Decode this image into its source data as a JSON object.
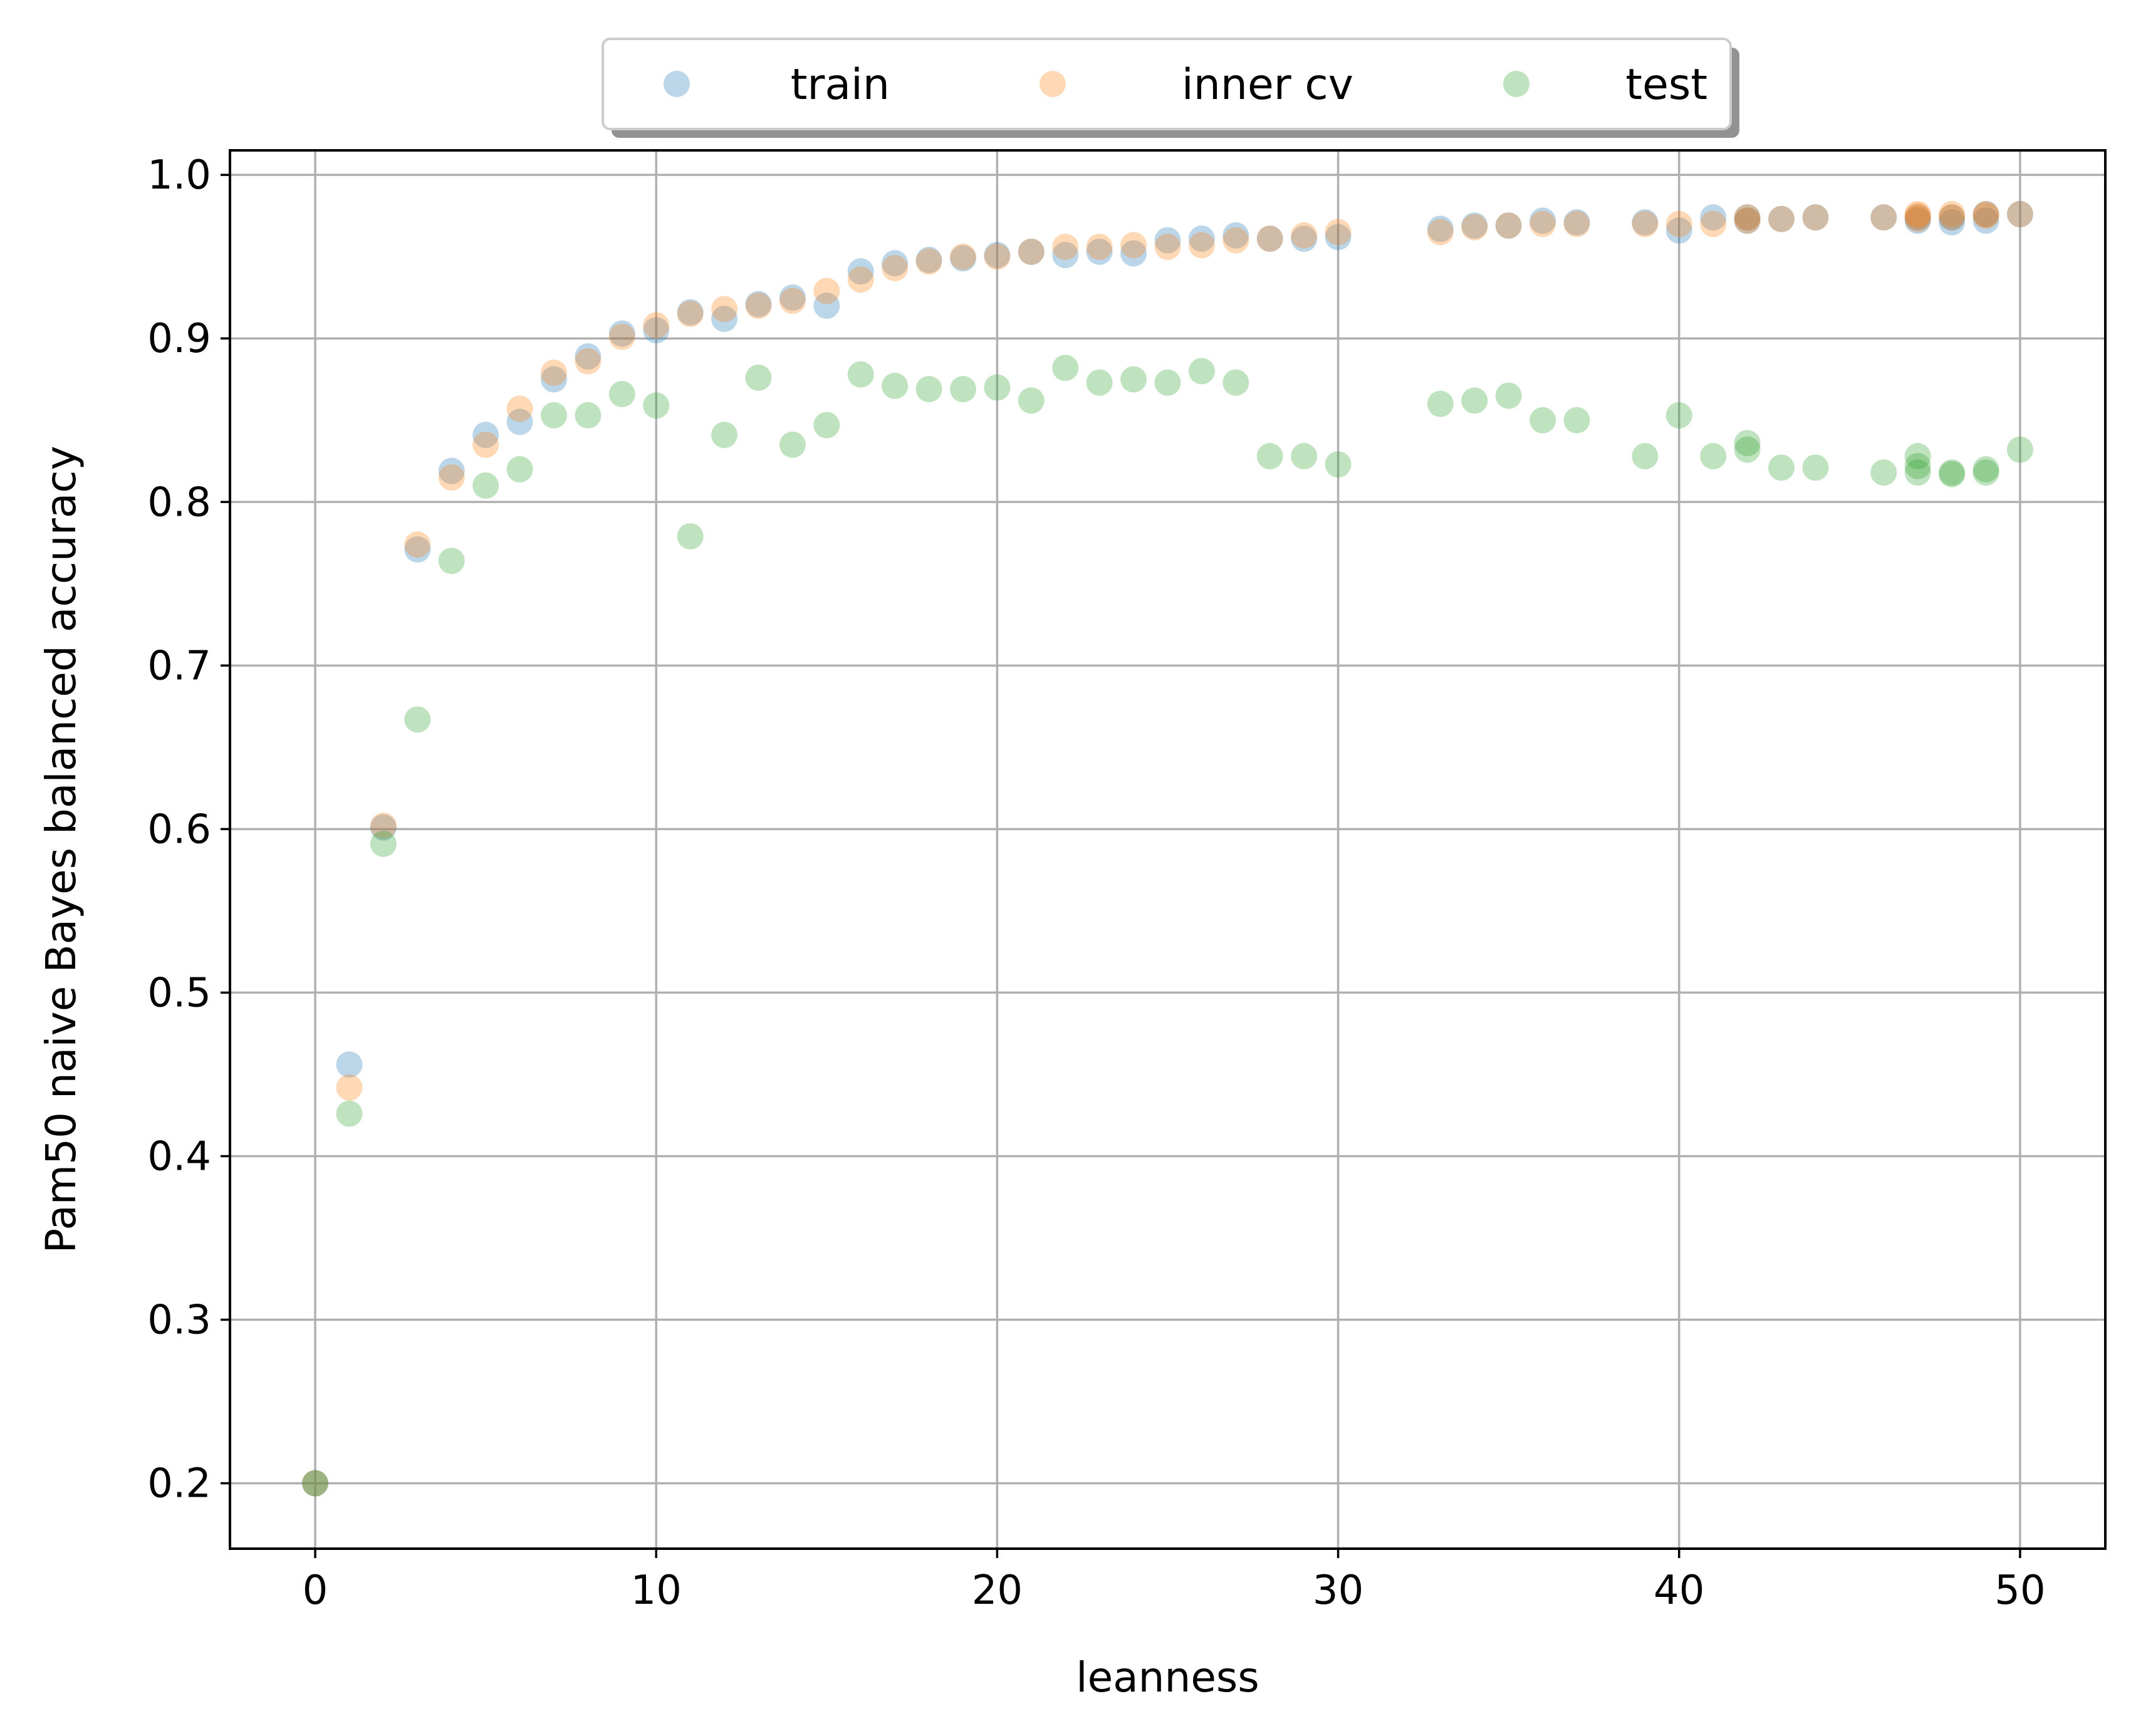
{
  "chart_data": {
    "type": "scatter",
    "title": "",
    "xlabel": "leanness",
    "ylabel": "Pam50 naive Bayes balanced accuracy",
    "xlim": [
      -2.5,
      52.5
    ],
    "ylim": [
      0.16,
      1.015
    ],
    "xticks": [
      0,
      10,
      20,
      30,
      40,
      50
    ],
    "xtick_labels": [
      "0",
      "10",
      "20",
      "30",
      "40",
      "50"
    ],
    "yticks": [
      0.2,
      0.3,
      0.4,
      0.5,
      0.6,
      0.7,
      0.8,
      0.9,
      1.0
    ],
    "ytick_labels": [
      "0.2",
      "0.3",
      "0.4",
      "0.5",
      "0.6",
      "0.7",
      "0.8",
      "0.9",
      "1.0"
    ],
    "grid": true,
    "legend_position": "top-center, outside plot, 3 columns, with shadow",
    "series": [
      {
        "name": "train",
        "color": "#1f77b4",
        "alpha": 0.3,
        "points": [
          [
            0,
            0.2
          ],
          [
            1,
            0.456
          ],
          [
            2,
            0.601
          ],
          [
            3,
            0.771
          ],
          [
            4,
            0.819
          ],
          [
            5,
            0.841
          ],
          [
            6,
            0.849
          ],
          [
            7,
            0.875
          ],
          [
            8,
            0.889
          ],
          [
            9,
            0.903
          ],
          [
            10,
            0.905
          ],
          [
            11,
            0.916
          ],
          [
            12,
            0.912
          ],
          [
            13,
            0.921
          ],
          [
            14,
            0.925
          ],
          [
            15,
            0.92
          ],
          [
            16,
            0.941
          ],
          [
            17,
            0.946
          ],
          [
            18,
            0.948
          ],
          [
            19,
            0.949
          ],
          [
            20,
            0.951
          ],
          [
            21,
            0.953
          ],
          [
            22,
            0.951
          ],
          [
            23,
            0.953
          ],
          [
            24,
            0.952
          ],
          [
            25,
            0.96
          ],
          [
            26,
            0.961
          ],
          [
            27,
            0.963
          ],
          [
            28,
            0.961
          ],
          [
            29,
            0.961
          ],
          [
            30,
            0.962
          ],
          [
            33,
            0.967
          ],
          [
            34,
            0.969
          ],
          [
            35,
            0.969
          ],
          [
            36,
            0.972
          ],
          [
            37,
            0.971
          ],
          [
            39,
            0.971
          ],
          [
            40,
            0.966
          ],
          [
            41,
            0.974
          ],
          [
            42,
            0.974
          ],
          [
            42,
            0.972
          ],
          [
            43,
            0.973
          ],
          [
            44,
            0.974
          ],
          [
            46,
            0.974
          ],
          [
            47,
            0.972
          ],
          [
            47,
            0.974
          ],
          [
            48,
            0.971
          ],
          [
            48,
            0.974
          ],
          [
            49,
            0.972
          ],
          [
            49,
            0.976
          ],
          [
            50,
            0.976
          ]
        ]
      },
      {
        "name": "inner cv",
        "color": "#ff7f0e",
        "alpha": 0.3,
        "points": [
          [
            0,
            0.2
          ],
          [
            1,
            0.442
          ],
          [
            2,
            0.602
          ],
          [
            3,
            0.774
          ],
          [
            4,
            0.815
          ],
          [
            5,
            0.835
          ],
          [
            6,
            0.857
          ],
          [
            7,
            0.879
          ],
          [
            8,
            0.886
          ],
          [
            9,
            0.901
          ],
          [
            10,
            0.908
          ],
          [
            11,
            0.915
          ],
          [
            12,
            0.918
          ],
          [
            13,
            0.92
          ],
          [
            14,
            0.923
          ],
          [
            15,
            0.929
          ],
          [
            16,
            0.936
          ],
          [
            17,
            0.943
          ],
          [
            18,
            0.947
          ],
          [
            19,
            0.95
          ],
          [
            20,
            0.95
          ],
          [
            21,
            0.953
          ],
          [
            22,
            0.956
          ],
          [
            23,
            0.956
          ],
          [
            24,
            0.957
          ],
          [
            25,
            0.956
          ],
          [
            26,
            0.957
          ],
          [
            27,
            0.96
          ],
          [
            28,
            0.961
          ],
          [
            29,
            0.963
          ],
          [
            30,
            0.965
          ],
          [
            33,
            0.965
          ],
          [
            34,
            0.968
          ],
          [
            35,
            0.969
          ],
          [
            36,
            0.97
          ],
          [
            37,
            0.97
          ],
          [
            39,
            0.97
          ],
          [
            40,
            0.97
          ],
          [
            41,
            0.97
          ],
          [
            42,
            0.972
          ],
          [
            42,
            0.974
          ],
          [
            43,
            0.973
          ],
          [
            44,
            0.974
          ],
          [
            46,
            0.974
          ],
          [
            47,
            0.975
          ],
          [
            47,
            0.973
          ],
          [
            47,
            0.976
          ],
          [
            48,
            0.976
          ],
          [
            48,
            0.974
          ],
          [
            49,
            0.976
          ],
          [
            49,
            0.975
          ],
          [
            50,
            0.976
          ]
        ]
      },
      {
        "name": "test",
        "color": "#2ca02c",
        "alpha": 0.3,
        "points": [
          [
            0,
            0.2
          ],
          [
            1,
            0.426
          ],
          [
            2,
            0.591
          ],
          [
            3,
            0.667
          ],
          [
            4,
            0.764
          ],
          [
            5,
            0.81
          ],
          [
            6,
            0.82
          ],
          [
            7,
            0.853
          ],
          [
            8,
            0.853
          ],
          [
            9,
            0.866
          ],
          [
            10,
            0.859
          ],
          [
            11,
            0.779
          ],
          [
            12,
            0.841
          ],
          [
            13,
            0.876
          ],
          [
            14,
            0.835
          ],
          [
            15,
            0.847
          ],
          [
            16,
            0.878
          ],
          [
            17,
            0.871
          ],
          [
            18,
            0.869
          ],
          [
            19,
            0.869
          ],
          [
            20,
            0.87
          ],
          [
            21,
            0.862
          ],
          [
            22,
            0.882
          ],
          [
            23,
            0.873
          ],
          [
            24,
            0.875
          ],
          [
            25,
            0.873
          ],
          [
            26,
            0.88
          ],
          [
            27,
            0.873
          ],
          [
            28,
            0.828
          ],
          [
            29,
            0.828
          ],
          [
            30,
            0.823
          ],
          [
            33,
            0.86
          ],
          [
            34,
            0.862
          ],
          [
            35,
            0.865
          ],
          [
            36,
            0.85
          ],
          [
            37,
            0.85
          ],
          [
            39,
            0.828
          ],
          [
            40,
            0.853
          ],
          [
            41,
            0.828
          ],
          [
            42,
            0.836
          ],
          [
            42,
            0.832
          ],
          [
            43,
            0.821
          ],
          [
            44,
            0.821
          ],
          [
            46,
            0.818
          ],
          [
            47,
            0.828
          ],
          [
            47,
            0.822
          ],
          [
            47,
            0.818
          ],
          [
            48,
            0.818
          ],
          [
            48,
            0.817
          ],
          [
            49,
            0.82
          ],
          [
            49,
            0.818
          ],
          [
            50,
            0.832
          ]
        ]
      }
    ]
  }
}
